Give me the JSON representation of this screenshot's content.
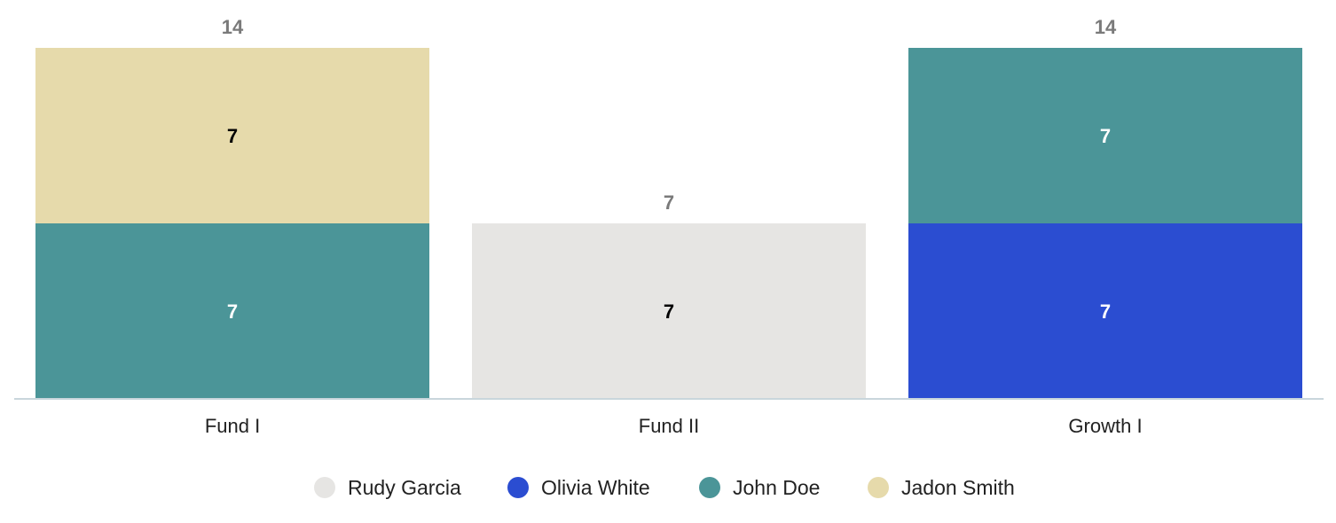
{
  "chart_data": {
    "type": "bar",
    "stacked": true,
    "categories": [
      "Fund I",
      "Fund II",
      "Growth I"
    ],
    "series": [
      {
        "name": "Rudy Garcia",
        "color": "#e6e5e3",
        "label_color": "#000000",
        "values": [
          0,
          7,
          0
        ]
      },
      {
        "name": "Olivia White",
        "color": "#2b4dd1",
        "label_color": "#ffffff",
        "values": [
          0,
          0,
          7
        ]
      },
      {
        "name": "John Doe",
        "color": "#4b9598",
        "label_color": "#ffffff",
        "values": [
          7,
          0,
          7
        ]
      },
      {
        "name": "Jadon Smith",
        "color": "#e6daab",
        "label_color": "#000000",
        "values": [
          7,
          0,
          0
        ]
      }
    ],
    "totals": [
      14,
      7,
      14
    ],
    "ylim": [
      0,
      14
    ],
    "grid": false,
    "legend_position": "bottom",
    "title": "",
    "xlabel": "",
    "ylabel": ""
  }
}
